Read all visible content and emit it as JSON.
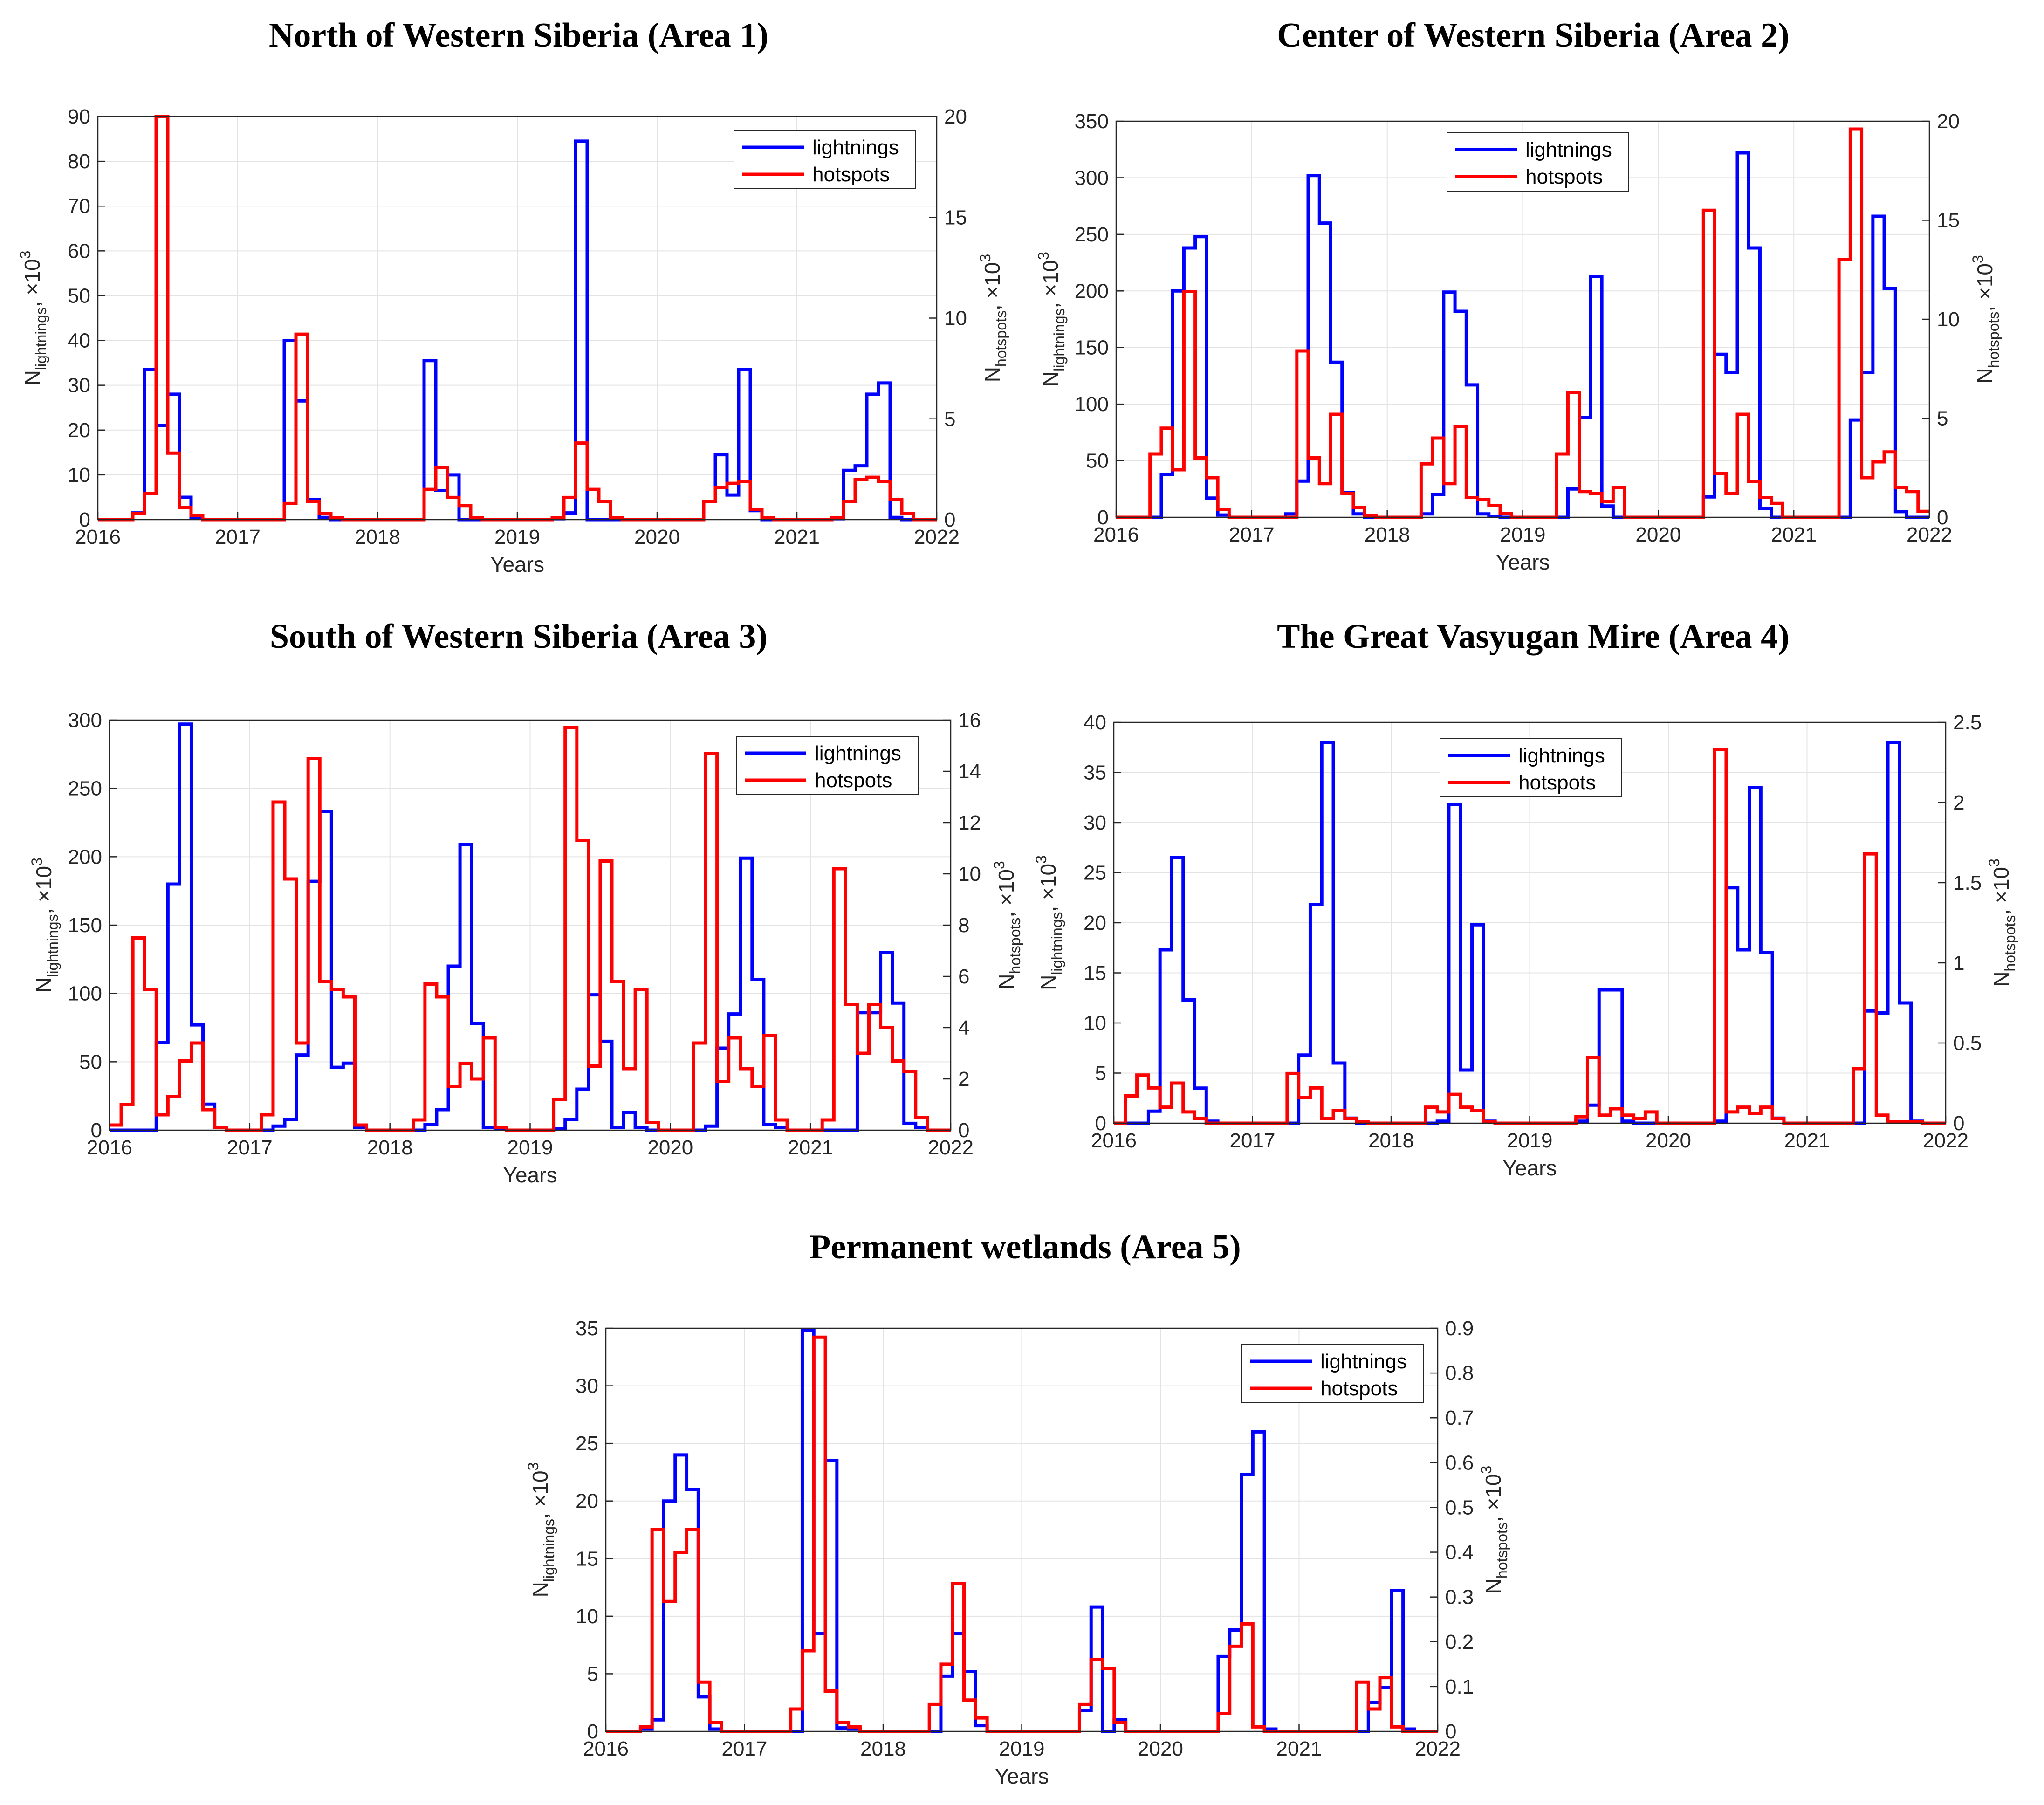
{
  "chart_data": [
    {
      "type": "line",
      "title": "North of Western Siberia (Area 1)",
      "xlabel": "Years",
      "ylabel_left": {
        "base": "N",
        "sub": "lightnings",
        "tail": ", ×10",
        "sup": "3"
      },
      "ylabel_right": {
        "base": "N",
        "sub": "hotspots",
        "tail": ", ×10",
        "sup": "3"
      },
      "xlim": [
        2016,
        2022
      ],
      "xticks": [
        "2016",
        "2017",
        "2018",
        "2019",
        "2020",
        "2021",
        "2022"
      ],
      "ylim_left": [
        0,
        90
      ],
      "yticks_left": [
        "0",
        "10",
        "20",
        "30",
        "40",
        "50",
        "60",
        "70",
        "80",
        "90"
      ],
      "ylim_right": [
        0,
        20
      ],
      "yticks_right": [
        "0",
        "5",
        "10",
        "15",
        "20"
      ],
      "legend": [
        {
          "name": "lightnings",
          "color": "#0000ff"
        },
        {
          "name": "hotspots",
          "color": "#ff0000"
        }
      ],
      "legend_position": "top-right",
      "grid": true,
      "series": [
        {
          "name": "lightnings",
          "axis": "left",
          "color": "#0000ff",
          "values": [
            0,
            0,
            0,
            1.5,
            33.5,
            21,
            28,
            5,
            0.5,
            0,
            0,
            0,
            0,
            0,
            0,
            0,
            40,
            26.5,
            4.5,
            0.5,
            0,
            0,
            0,
            0,
            0,
            0,
            0,
            0,
            35.5,
            6.5,
            10,
            0,
            0,
            0,
            0,
            0,
            0,
            0,
            0,
            0.2,
            1.5,
            84.5,
            0,
            0,
            0,
            0,
            0,
            0,
            0,
            0,
            0,
            0,
            4,
            14.5,
            5.5,
            33.5,
            2,
            0,
            0,
            0,
            0,
            0,
            0,
            0.2,
            11,
            12,
            28,
            30.5,
            0.5,
            0,
            0,
            0
          ]
        },
        {
          "name": "hotspots",
          "axis": "right",
          "color": "#ff0000",
          "values": [
            0,
            0,
            0,
            0.3,
            1.3,
            20,
            3.3,
            0.6,
            0.2,
            0,
            0,
            0,
            0,
            0,
            0,
            0,
            0.8,
            9.2,
            0.9,
            0.3,
            0.1,
            0,
            0,
            0,
            0,
            0,
            0,
            0,
            1.5,
            2.6,
            1.1,
            0.7,
            0.1,
            0,
            0,
            0,
            0,
            0,
            0,
            0.1,
            1.1,
            3.8,
            1.5,
            0.9,
            0.1,
            0,
            0,
            0,
            0,
            0,
            0,
            0,
            0.9,
            1.6,
            1.8,
            1.9,
            0.5,
            0.1,
            0,
            0,
            0,
            0,
            0,
            0.1,
            0.9,
            2,
            2.1,
            1.9,
            1,
            0.3,
            0,
            0
          ]
        }
      ]
    },
    {
      "type": "line",
      "title": "Center of Western Siberia (Area 2)",
      "xlabel": "Years",
      "ylabel_left": {
        "base": "N",
        "sub": "lightnings",
        "tail": ", ×10",
        "sup": "3"
      },
      "ylabel_right": {
        "base": "N",
        "sub": "hotspots",
        "tail": ", ×10",
        "sup": "3"
      },
      "xlim": [
        2016,
        2022
      ],
      "xticks": [
        "2016",
        "2017",
        "2018",
        "2019",
        "2020",
        "2021",
        "2022"
      ],
      "ylim_left": [
        0,
        350
      ],
      "yticks_left": [
        "0",
        "50",
        "100",
        "150",
        "200",
        "250",
        "300",
        "350"
      ],
      "ylim_right": [
        0,
        20
      ],
      "yticks_right": [
        "0",
        "5",
        "10",
        "15",
        "20"
      ],
      "legend": [
        {
          "name": "lightnings",
          "color": "#0000ff"
        },
        {
          "name": "hotspots",
          "color": "#ff0000"
        }
      ],
      "legend_position": "top-center",
      "grid": true,
      "series": [
        {
          "name": "lightnings",
          "axis": "left",
          "color": "#0000ff",
          "values": [
            0,
            0,
            0,
            0,
            38,
            200,
            238,
            248,
            17,
            2,
            0,
            0,
            0,
            0,
            0,
            3,
            32,
            302,
            260,
            137,
            22,
            3,
            0,
            0,
            0,
            0,
            0,
            3,
            20,
            199,
            182,
            117,
            3,
            1,
            0,
            0,
            0,
            0,
            0,
            0,
            25,
            88,
            213,
            10,
            0,
            0,
            0,
            0,
            0,
            0,
            0,
            0,
            18,
            144,
            128,
            322,
            238,
            8,
            0,
            0,
            0,
            0,
            0,
            0,
            0,
            86,
            128,
            266,
            202,
            5,
            0,
            0
          ]
        },
        {
          "name": "hotspots",
          "axis": "right",
          "color": "#ff0000",
          "values": [
            0,
            0,
            0,
            3.2,
            4.5,
            2.4,
            11.4,
            3,
            2,
            0.4,
            0,
            0,
            0,
            0,
            0,
            0,
            8.4,
            3,
            1.7,
            5.2,
            1.2,
            0.5,
            0.1,
            0,
            0,
            0,
            0,
            2.7,
            4,
            1.7,
            4.6,
            1,
            0.9,
            0.6,
            0.2,
            0,
            0,
            0,
            0,
            3.2,
            6.3,
            1.3,
            1.2,
            0.8,
            1.5,
            0,
            0,
            0,
            0,
            0,
            0,
            0,
            15.5,
            2.2,
            1.2,
            5.2,
            1.8,
            1,
            0.7,
            0,
            0,
            0,
            0,
            0,
            13,
            19.6,
            2,
            2.8,
            3.3,
            1.5,
            1.3,
            0.3
          ]
        }
      ]
    },
    {
      "type": "line",
      "title": "South of Western Siberia (Area 3)",
      "xlabel": "Years",
      "ylabel_left": {
        "base": "N",
        "sub": "lightnings",
        "tail": ", ×10",
        "sup": "3"
      },
      "ylabel_right": {
        "base": "N",
        "sub": "hotspots",
        "tail": ", ×10",
        "sup": "3"
      },
      "xlim": [
        2016,
        2022
      ],
      "xticks": [
        "2016",
        "2017",
        "2018",
        "2019",
        "2020",
        "2021",
        "2022"
      ],
      "ylim_left": [
        0,
        300
      ],
      "yticks_left": [
        "0",
        "50",
        "100",
        "150",
        "200",
        "250",
        "300"
      ],
      "ylim_right": [
        0,
        16
      ],
      "yticks_right": [
        "0",
        "2",
        "4",
        "6",
        "8",
        "10",
        "12",
        "14",
        "16"
      ],
      "legend": [
        {
          "name": "lightnings",
          "color": "#0000ff"
        },
        {
          "name": "hotspots",
          "color": "#ff0000"
        }
      ],
      "legend_position": "top-right",
      "grid": true,
      "series": [
        {
          "name": "lightnings",
          "axis": "left",
          "color": "#0000ff",
          "values": [
            0,
            0,
            0,
            0,
            64,
            180,
            297,
            77,
            19,
            2,
            0,
            0,
            0,
            0,
            3,
            8,
            55,
            182,
            233,
            46,
            49,
            2,
            0,
            0,
            0,
            0,
            0,
            4,
            15,
            120,
            209,
            78,
            2,
            1,
            0,
            0,
            0,
            0,
            1,
            8,
            30,
            99,
            65,
            2,
            13,
            2,
            0,
            0,
            0,
            0,
            0,
            3,
            60,
            85,
            199,
            110,
            4,
            2,
            0,
            0,
            0,
            0,
            0,
            0,
            86,
            86,
            130,
            93,
            5,
            2,
            0,
            0
          ]
        },
        {
          "name": "hotspots",
          "axis": "right",
          "color": "#ff0000",
          "values": [
            0.2,
            1,
            7.5,
            5.5,
            0.6,
            1.3,
            2.7,
            3.4,
            0.8,
            0.1,
            0,
            0,
            0,
            0.6,
            12.8,
            9.8,
            3.4,
            14.5,
            5.8,
            5.5,
            5.2,
            0.2,
            0,
            0,
            0,
            0,
            0.4,
            5.7,
            5.2,
            1.7,
            2.6,
            2,
            3.6,
            0.1,
            0,
            0,
            0,
            0,
            1.2,
            15.7,
            11.3,
            2.5,
            10.5,
            5.8,
            2.4,
            5.5,
            0.3,
            0,
            0,
            0,
            3.4,
            14.7,
            1.9,
            3.6,
            2.4,
            1.7,
            3.7,
            0.4,
            0,
            0,
            0,
            0.4,
            10.2,
            4.9,
            3,
            4.9,
            4,
            2.7,
            2.3,
            0.5,
            0,
            0
          ]
        }
      ]
    },
    {
      "type": "line",
      "title": "The Great Vasyugan Mire (Area 4)",
      "xlabel": "Years",
      "ylabel_left": {
        "base": "N",
        "sub": "lightnings",
        "tail": ", ×10",
        "sup": "3"
      },
      "ylabel_right": {
        "base": "N",
        "sub": "hotspots",
        "tail": ", ×10",
        "sup": "3"
      },
      "xlim": [
        2016,
        2022
      ],
      "xticks": [
        "2016",
        "2017",
        "2018",
        "2019",
        "2020",
        "2021",
        "2022"
      ],
      "ylim_left": [
        0,
        40
      ],
      "yticks_left": [
        "0",
        "5",
        "10",
        "15",
        "20",
        "25",
        "30",
        "35",
        "40"
      ],
      "ylim_right": [
        0,
        2.5
      ],
      "yticks_right": [
        "0",
        "0.5",
        "1",
        "1.5",
        "2",
        "2.5"
      ],
      "legend": [
        {
          "name": "lightnings",
          "color": "#0000ff"
        },
        {
          "name": "hotspots",
          "color": "#ff0000"
        }
      ],
      "legend_position": "top-center",
      "grid": true,
      "series": [
        {
          "name": "lightnings",
          "axis": "left",
          "color": "#0000ff",
          "values": [
            0,
            0,
            0,
            1.2,
            17.3,
            26.5,
            12.3,
            3.5,
            0.2,
            0,
            0,
            0,
            0,
            0,
            0,
            0,
            6.8,
            21.8,
            38,
            6,
            0.5,
            0,
            0,
            0,
            0,
            0,
            0,
            0,
            0.2,
            31.8,
            5.3,
            19.8,
            0.2,
            0,
            0,
            0,
            0,
            0,
            0,
            0,
            0.2,
            1.8,
            13.3,
            13.3,
            0.2,
            0,
            0,
            0,
            0,
            0,
            0,
            0,
            0.2,
            23.5,
            17.3,
            33.5,
            17,
            0.5,
            0,
            0,
            0,
            0,
            0,
            0,
            0,
            11.2,
            11,
            38,
            12,
            0.2,
            0,
            0
          ]
        },
        {
          "name": "hotspots",
          "axis": "right",
          "color": "#ff0000",
          "values": [
            0,
            0.17,
            0.3,
            0.22,
            0.1,
            0.25,
            0.07,
            0.03,
            0,
            0,
            0,
            0,
            0,
            0,
            0,
            0.31,
            0.16,
            0.22,
            0.03,
            0.08,
            0.03,
            0.01,
            0,
            0,
            0,
            0,
            0,
            0.1,
            0.07,
            0.18,
            0.1,
            0.08,
            0.01,
            0,
            0,
            0,
            0,
            0,
            0,
            0,
            0.04,
            0.41,
            0.05,
            0.09,
            0.05,
            0.03,
            0.07,
            0,
            0,
            0,
            0,
            0,
            2.33,
            0.07,
            0.1,
            0.06,
            0.1,
            0.03,
            0,
            0,
            0,
            0,
            0,
            0,
            0.34,
            1.68,
            0.05,
            0.01,
            0.01,
            0.01,
            0,
            0
          ]
        }
      ]
    },
    {
      "type": "line",
      "title": "Permanent wetlands (Area 5)",
      "xlabel": "Years",
      "ylabel_left": {
        "base": "N",
        "sub": "lightnings",
        "tail": ", ×10",
        "sup": "3"
      },
      "ylabel_right": {
        "base": "N",
        "sub": "hotspots",
        "tail": ", ×10",
        "sup": "3"
      },
      "xlim": [
        2016,
        2022
      ],
      "xticks": [
        "2016",
        "2017",
        "2018",
        "2019",
        "2020",
        "2021",
        "2022"
      ],
      "ylim_left": [
        0,
        35
      ],
      "yticks_left": [
        "0",
        "5",
        "10",
        "15",
        "20",
        "25",
        "30",
        "35"
      ],
      "ylim_right": [
        0,
        0.9
      ],
      "yticks_right": [
        "0",
        "0.1",
        "0.2",
        "0.3",
        "0.4",
        "0.5",
        "0.6",
        "0.7",
        "0.8",
        "0.9"
      ],
      "legend": [
        {
          "name": "lightnings",
          "color": "#0000ff"
        },
        {
          "name": "hotspots",
          "color": "#ff0000"
        }
      ],
      "legend_position": "top-right",
      "grid": true,
      "series": [
        {
          "name": "lightnings",
          "axis": "left",
          "color": "#0000ff",
          "values": [
            0,
            0,
            0,
            0.2,
            1,
            20,
            24,
            21,
            3,
            0.2,
            0,
            0,
            0,
            0,
            0,
            0,
            0,
            34.8,
            8.5,
            23.5,
            0.3,
            0.2,
            0,
            0,
            0,
            0,
            0,
            0,
            0,
            4.8,
            8.5,
            5.2,
            0.5,
            0,
            0,
            0,
            0,
            0,
            0,
            0,
            0,
            1.8,
            10.8,
            0,
            1,
            0,
            0,
            0,
            0,
            0,
            0,
            0,
            0,
            6.5,
            8.8,
            22.3,
            26,
            0.2,
            0,
            0,
            0,
            0,
            0,
            0,
            0,
            0,
            2.5,
            3.8,
            12.2,
            0.2,
            0,
            0
          ]
        },
        {
          "name": "hotspots",
          "axis": "right",
          "color": "#ff0000",
          "values": [
            0,
            0,
            0,
            0.01,
            0.45,
            0.29,
            0.4,
            0.45,
            0.11,
            0.02,
            0,
            0,
            0,
            0,
            0,
            0,
            0.05,
            0.18,
            0.88,
            0.09,
            0.02,
            0.01,
            0,
            0,
            0,
            0,
            0,
            0,
            0.06,
            0.15,
            0.33,
            0.07,
            0.03,
            0,
            0,
            0,
            0,
            0,
            0,
            0,
            0,
            0.06,
            0.16,
            0.14,
            0.02,
            0,
            0,
            0,
            0,
            0,
            0,
            0,
            0,
            0.04,
            0.19,
            0.24,
            0.01,
            0,
            0,
            0,
            0,
            0,
            0,
            0,
            0,
            0.11,
            0.05,
            0.12,
            0.01,
            0,
            0,
            0
          ]
        }
      ]
    }
  ]
}
